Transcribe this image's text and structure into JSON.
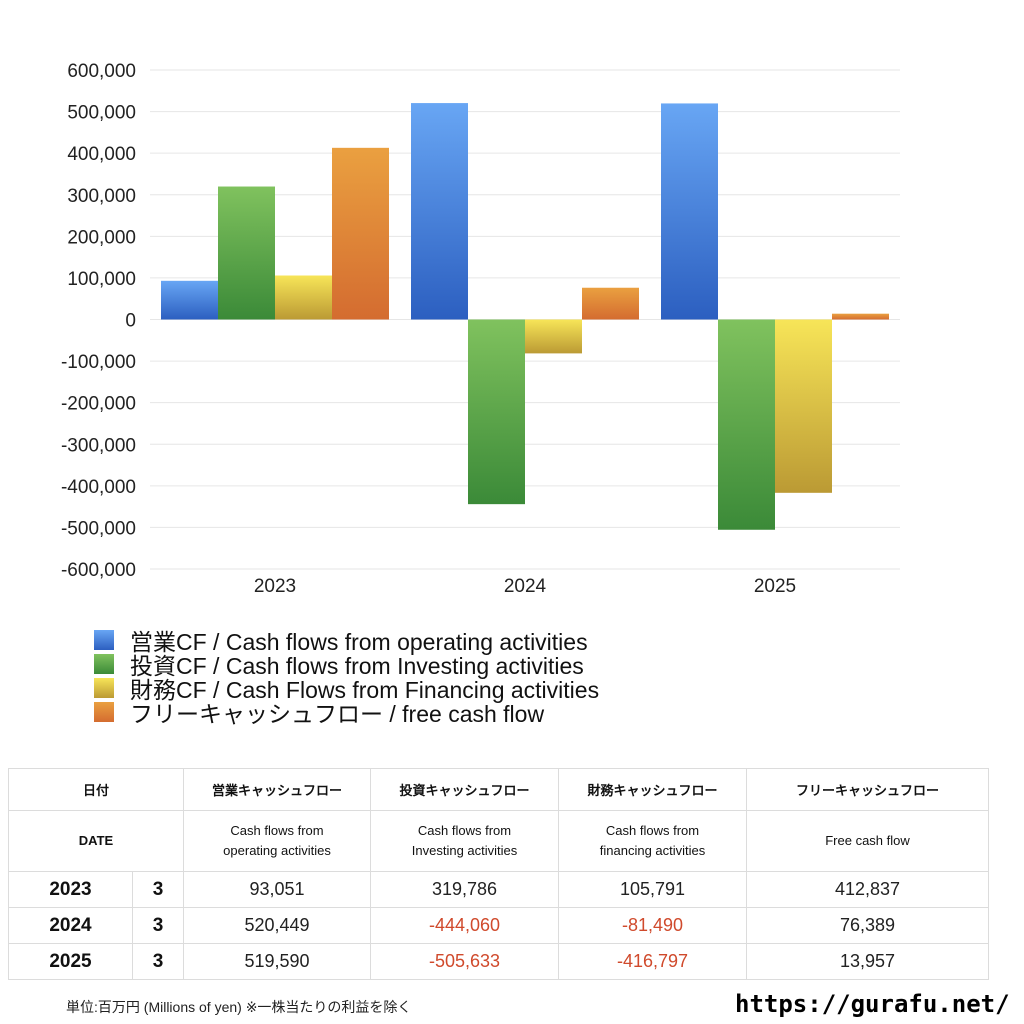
{
  "chart_data": {
    "type": "bar",
    "categories": [
      "2023",
      "2024",
      "2025"
    ],
    "ylim": [
      -600000,
      600000
    ],
    "yticks": [
      600000,
      500000,
      400000,
      300000,
      200000,
      100000,
      0,
      -100000,
      -200000,
      -300000,
      -400000,
      -500000,
      -600000
    ],
    "ytick_labels": [
      "600,000",
      "500,000",
      "400,000",
      "300,000",
      "200,000",
      "100,000",
      "0",
      "-100,000",
      "-200,000",
      "-300,000",
      "-400,000",
      "-500,000",
      "-600,000"
    ],
    "grid": true,
    "legend_position": "bottom",
    "series": [
      {
        "name": "営業CF / Cash flows from operating activities",
        "color": "#3f7fe0",
        "values": [
          93051,
          520449,
          519590
        ]
      },
      {
        "name": "投資CF / Cash flows from Investing activities",
        "color": "#5aa447",
        "values": [
          319786,
          -444060,
          -505633
        ]
      },
      {
        "name": "財務CF / Cash Flows from Financing activities",
        "color": "#e8cb3c",
        "values": [
          105791,
          -81490,
          -416797
        ]
      },
      {
        "name": "フリーキャッシュフロー / free cash flow",
        "color": "#e0823a",
        "values": [
          412837,
          76389,
          13957
        ]
      }
    ]
  },
  "table": {
    "header": [
      "日付",
      "営業キャッシュフロー",
      "投資キャッシュフロー",
      "財務キャッシュフロー",
      "フリーキャッシュフロー"
    ],
    "subheader": {
      "date": "DATE",
      "operating_line1": "Cash flows from",
      "operating_line2": "operating activities",
      "investing_line1": "Cash flows from",
      "investing_line2": "Investing activities",
      "financing_line1": "Cash flows from",
      "financing_line2": "financing activities",
      "free": "Free cash flow"
    },
    "rows": [
      {
        "year": "2023",
        "month": "3",
        "operating": "93,051",
        "investing": "319,786",
        "financing": "105,791",
        "free": "412,837"
      },
      {
        "year": "2024",
        "month": "3",
        "operating": "520,449",
        "investing": "-444,060",
        "financing": "-81,490",
        "free": "76,389"
      },
      {
        "year": "2025",
        "month": "3",
        "operating": "519,590",
        "investing": "-505,633",
        "financing": "-416,797",
        "free": "13,957"
      }
    ]
  },
  "footer": {
    "note": "単位:百万円 (Millions of yen) ※一株当たりの利益を除く",
    "url": "https://gurafu.net/"
  }
}
